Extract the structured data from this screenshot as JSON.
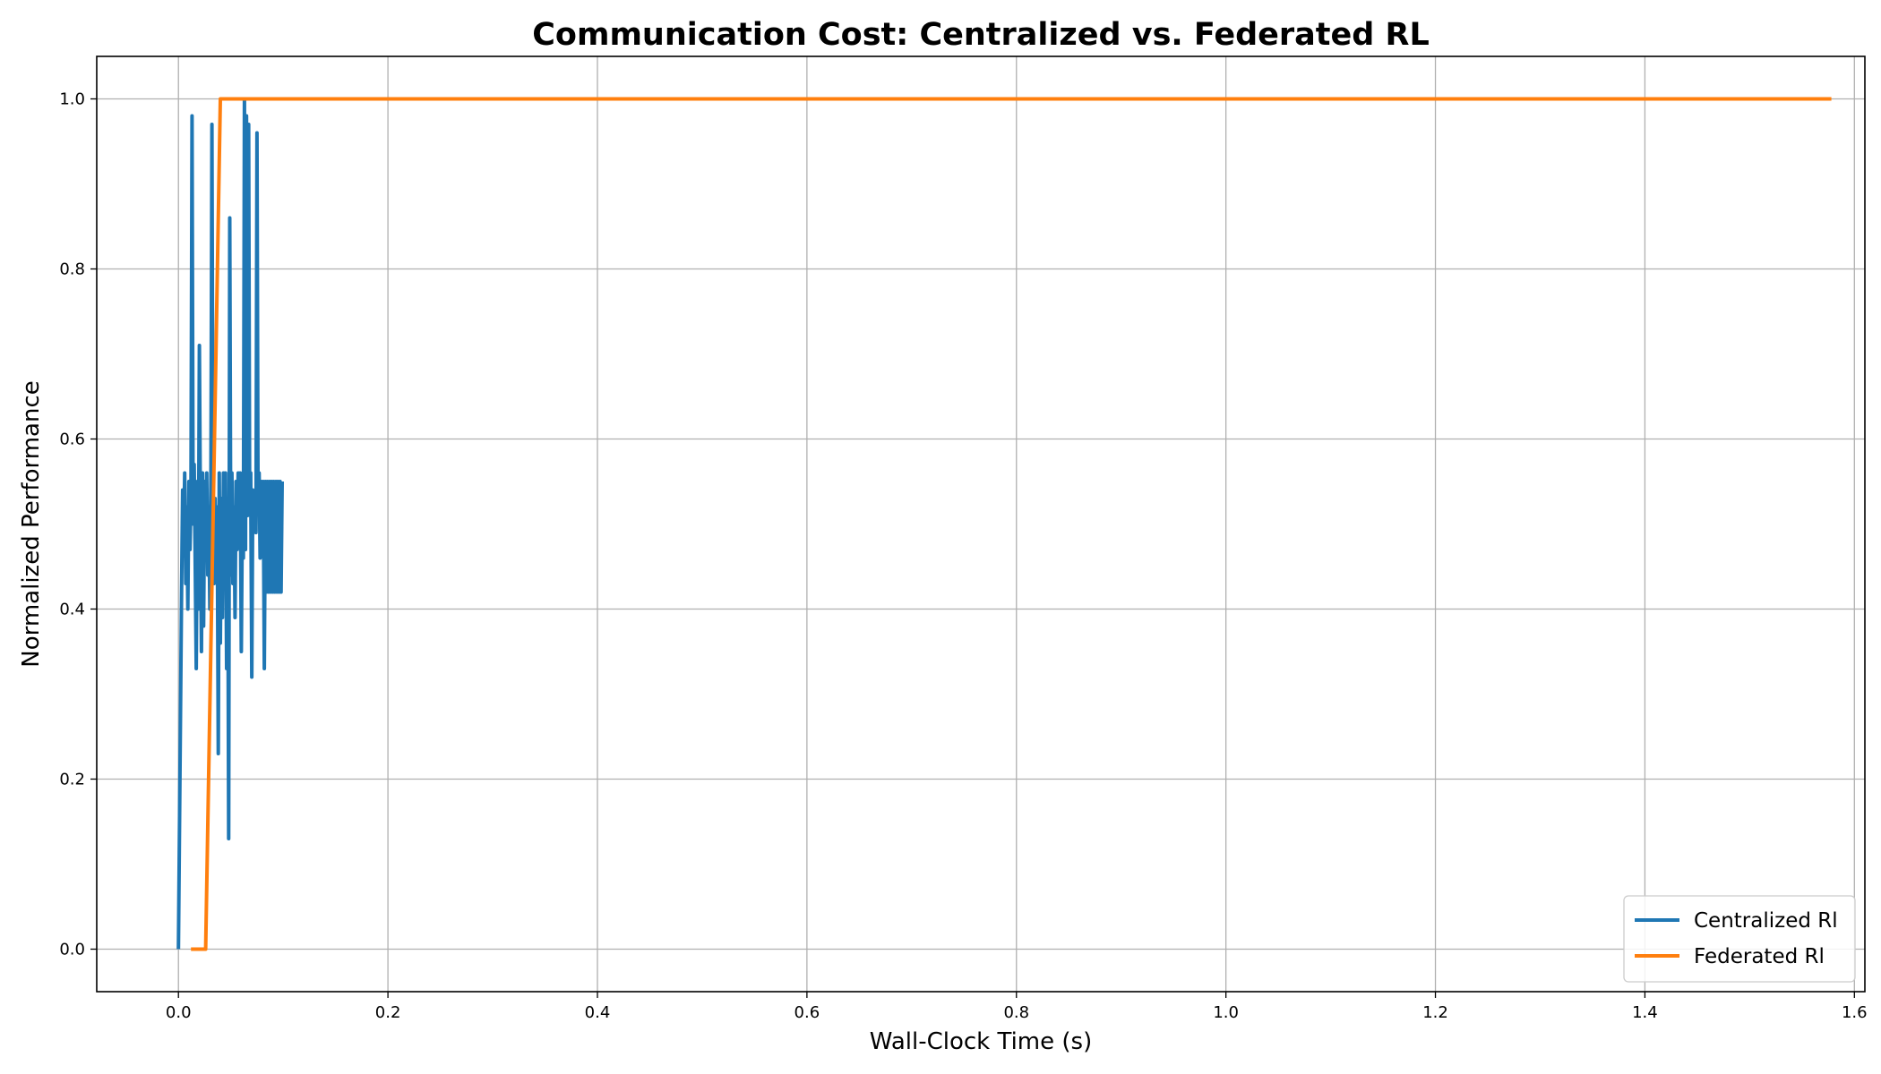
{
  "chart_data": {
    "type": "line",
    "title": "Communication Cost: Centralized vs. Federated RL",
    "xlabel": "Wall-Clock Time (s)",
    "ylabel": "Normalized Performance",
    "xlim": [
      -0.078,
      1.61
    ],
    "ylim": [
      -0.05,
      1.05
    ],
    "xticks": [
      0.0,
      0.2,
      0.4,
      0.6,
      0.8,
      1.0,
      1.2,
      1.4,
      1.6
    ],
    "xtick_labels": [
      "0.0",
      "0.2",
      "0.4",
      "0.6",
      "0.8",
      "1.0",
      "1.2",
      "1.4",
      "1.6"
    ],
    "yticks": [
      0.0,
      0.2,
      0.4,
      0.6,
      0.8,
      1.0
    ],
    "ytick_labels": [
      "0.0",
      "0.2",
      "0.4",
      "0.6",
      "0.8",
      "1.0"
    ],
    "grid": true,
    "legend_position": "bottom-right",
    "series": [
      {
        "name": "Centralized Rl",
        "color": "#1f77b4",
        "x": [
          0.0,
          0.003,
          0.004,
          0.005,
          0.006,
          0.007,
          0.008,
          0.009,
          0.01,
          0.011,
          0.012,
          0.013,
          0.014,
          0.015,
          0.016,
          0.017,
          0.018,
          0.019,
          0.02,
          0.021,
          0.022,
          0.023,
          0.024,
          0.025,
          0.026,
          0.027,
          0.028,
          0.029,
          0.03,
          0.031,
          0.032,
          0.033,
          0.034,
          0.035,
          0.036,
          0.037,
          0.038,
          0.039,
          0.04,
          0.041,
          0.042,
          0.043,
          0.044,
          0.045,
          0.046,
          0.047,
          0.048,
          0.049,
          0.05,
          0.051,
          0.052,
          0.053,
          0.054,
          0.055,
          0.056,
          0.057,
          0.058,
          0.059,
          0.06,
          0.061,
          0.062,
          0.063,
          0.064,
          0.065,
          0.066,
          0.067,
          0.068,
          0.069,
          0.07,
          0.071,
          0.072,
          0.073,
          0.074,
          0.075,
          0.076,
          0.077,
          0.078,
          0.079,
          0.08,
          0.081,
          0.082,
          0.083,
          0.084,
          0.085,
          0.086,
          0.087,
          0.088,
          0.089,
          0.09,
          0.091,
          0.092,
          0.093,
          0.094,
          0.095,
          0.096,
          0.097,
          0.098,
          0.099
        ],
        "values": [
          0.0,
          0.42,
          0.54,
          0.48,
          0.56,
          0.43,
          0.52,
          0.4,
          0.55,
          0.47,
          0.53,
          0.98,
          0.5,
          0.57,
          0.46,
          0.33,
          0.55,
          0.4,
          0.71,
          0.5,
          0.35,
          0.56,
          0.38,
          0.55,
          0.47,
          0.56,
          0.44,
          0.52,
          0.4,
          0.56,
          0.97,
          0.5,
          0.43,
          0.53,
          0.46,
          0.52,
          0.23,
          0.56,
          0.36,
          0.53,
          0.39,
          0.56,
          0.44,
          0.56,
          0.33,
          0.53,
          0.13,
          0.86,
          0.44,
          0.56,
          0.43,
          0.52,
          0.39,
          0.55,
          0.47,
          0.56,
          0.5,
          0.56,
          0.35,
          0.52,
          0.46,
          1.0,
          0.47,
          0.98,
          0.51,
          0.97,
          0.53,
          0.56,
          0.32,
          0.54,
          0.51,
          0.53,
          0.49,
          0.96,
          0.52,
          0.56,
          0.46,
          0.55,
          0.48,
          0.55,
          0.33,
          0.55,
          0.42,
          0.55,
          0.42,
          0.55,
          0.42,
          0.55,
          0.42,
          0.55,
          0.42,
          0.55,
          0.42,
          0.55,
          0.42,
          0.55,
          0.42,
          0.55
        ]
      },
      {
        "name": "Federated Rl",
        "color": "#ff7f0e",
        "x": [
          0.012,
          0.026,
          0.04,
          0.1,
          0.5,
          1.0,
          1.578
        ],
        "values": [
          0.0,
          0.0,
          1.0,
          1.0,
          1.0,
          1.0,
          1.0
        ]
      }
    ]
  }
}
